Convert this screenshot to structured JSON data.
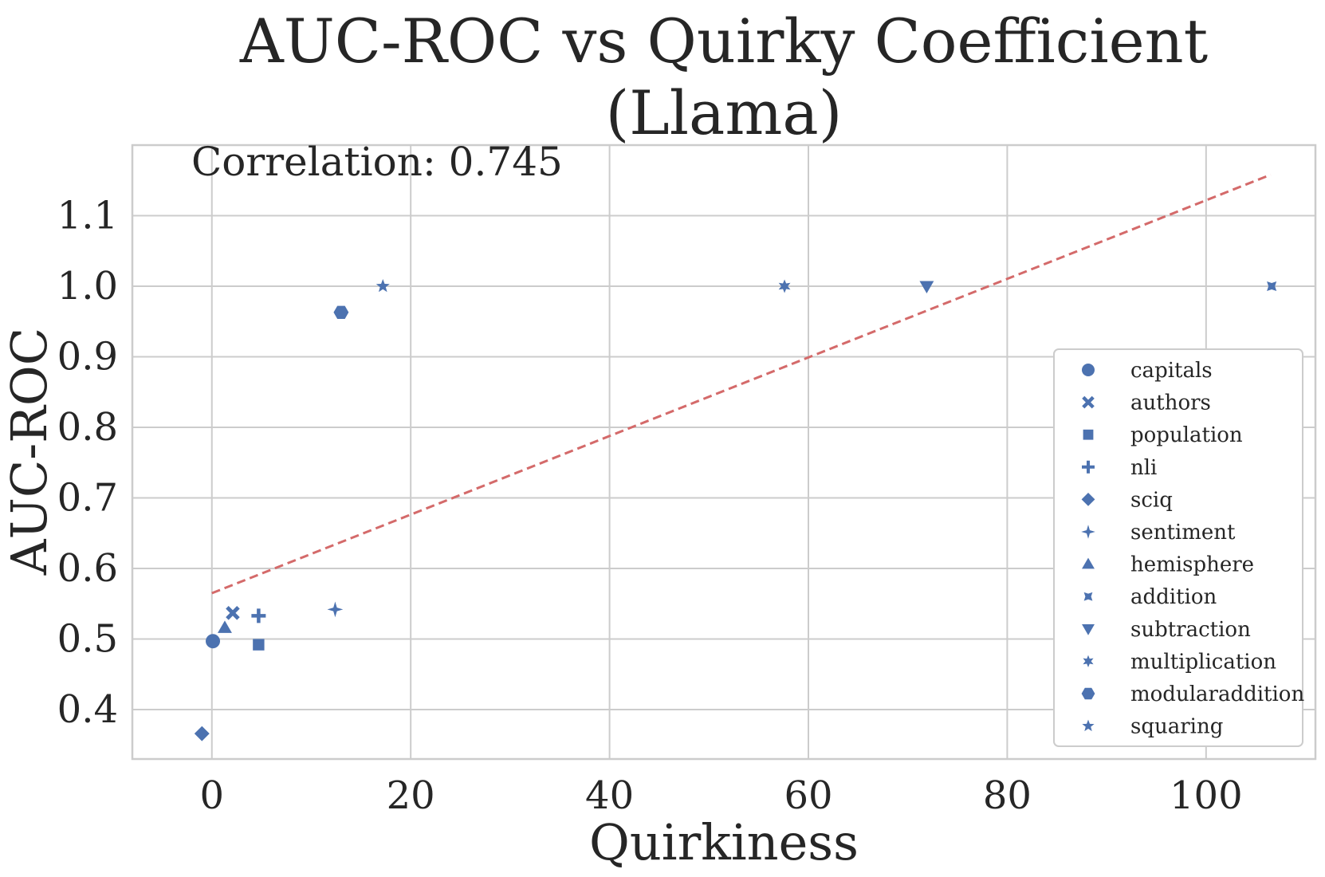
{
  "chart_data": {
    "type": "scatter",
    "title_lines": [
      "AUC-ROC vs Quirky Coefficient",
      "(Llama)"
    ],
    "annotation": "Correlation: 0.745",
    "xlabel": "Quirkiness",
    "ylabel": "AUC-ROC",
    "xlim": [
      -8,
      111
    ],
    "ylim": [
      0.33,
      1.2
    ],
    "xticks": [
      0,
      20,
      40,
      60,
      80,
      100
    ],
    "xtick_labels": [
      "0",
      "20",
      "40",
      "60",
      "80",
      "100"
    ],
    "yticks": [
      0.4,
      0.5,
      0.6,
      0.7,
      0.8,
      0.9,
      1.0,
      1.1
    ],
    "ytick_labels": [
      "0.4",
      "0.5",
      "0.6",
      "0.7",
      "0.8",
      "0.9",
      "1.0",
      "1.1"
    ],
    "grid": true,
    "legend_position": "lower-right",
    "marker_color": "#4c72b0",
    "trendline": {
      "color": "#d46a6a",
      "style": "dashed",
      "x": [
        0,
        106.5
      ],
      "y": [
        0.565,
        1.158
      ]
    },
    "series": [
      {
        "name": "capitals",
        "marker": "circle",
        "x": 0.1,
        "y": 0.497
      },
      {
        "name": "authors",
        "marker": "x",
        "x": 2.1,
        "y": 0.537
      },
      {
        "name": "population",
        "marker": "square",
        "x": 4.7,
        "y": 0.492
      },
      {
        "name": "nli",
        "marker": "plus",
        "x": 4.7,
        "y": 0.533
      },
      {
        "name": "sciq",
        "marker": "diamond",
        "x": -1.0,
        "y": 0.366
      },
      {
        "name": "sentiment",
        "marker": "star4",
        "x": 12.4,
        "y": 0.542
      },
      {
        "name": "hemisphere",
        "marker": "triangle-up",
        "x": 1.3,
        "y": 0.516
      },
      {
        "name": "addition",
        "marker": "star4-diag",
        "x": 106.6,
        "y": 1.0
      },
      {
        "name": "subtraction",
        "marker": "triangle-down",
        "x": 71.9,
        "y": 1.0
      },
      {
        "name": "multiplication",
        "marker": "star6",
        "x": 57.6,
        "y": 1.0
      },
      {
        "name": "modularaddition",
        "marker": "hexagon",
        "x": 13.0,
        "y": 0.963
      },
      {
        "name": "squaring",
        "marker": "star5",
        "x": 17.2,
        "y": 1.0
      }
    ]
  }
}
